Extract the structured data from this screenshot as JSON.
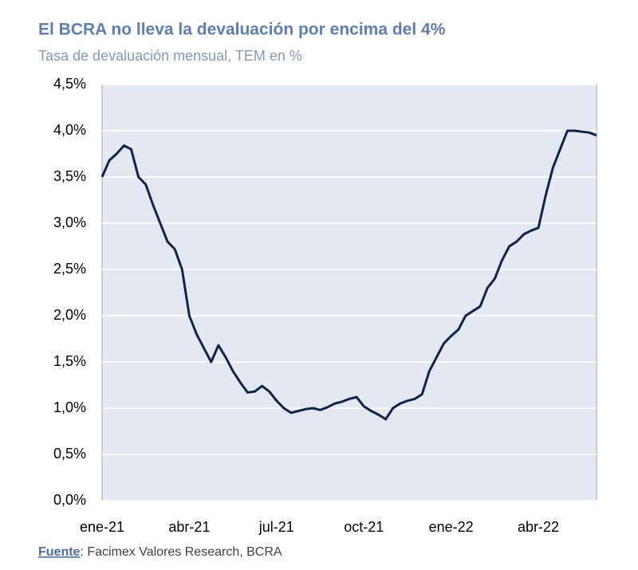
{
  "chart_data": {
    "type": "line",
    "title": "El BCRA no lleva la devaluación por encima del 4%",
    "subtitle": "Tasa de devaluación mensual, TEM en %",
    "categories": [
      "ene-21",
      null,
      null,
      null,
      null,
      null,
      null,
      null,
      null,
      null,
      null,
      null,
      "abr-21",
      null,
      null,
      null,
      null,
      null,
      null,
      null,
      null,
      null,
      null,
      null,
      "jul-21",
      null,
      null,
      null,
      null,
      null,
      null,
      null,
      null,
      null,
      null,
      null,
      "oct-21",
      null,
      null,
      null,
      null,
      null,
      null,
      null,
      null,
      null,
      null,
      null,
      "ene-22",
      null,
      null,
      null,
      null,
      null,
      null,
      null,
      null,
      null,
      null,
      null,
      "abr-22",
      null,
      null,
      null,
      null,
      null,
      null,
      null,
      null
    ],
    "values": [
      3.5,
      3.68,
      3.75,
      3.84,
      3.8,
      3.5,
      3.42,
      3.2,
      3.0,
      2.8,
      2.72,
      2.5,
      2.0,
      1.8,
      1.65,
      1.5,
      1.68,
      1.55,
      1.4,
      1.28,
      1.17,
      1.18,
      1.24,
      1.18,
      1.08,
      1.0,
      0.95,
      0.97,
      0.99,
      1.0,
      0.98,
      1.01,
      1.05,
      1.07,
      1.1,
      1.12,
      1.02,
      0.97,
      0.93,
      0.88,
      1.0,
      1.05,
      1.08,
      1.1,
      1.15,
      1.4,
      1.55,
      1.7,
      1.78,
      1.85,
      2.0,
      2.05,
      2.1,
      2.3,
      2.4,
      2.6,
      2.75,
      2.8,
      2.88,
      2.92,
      2.95,
      3.3,
      3.6,
      3.8,
      4.0,
      4.0,
      3.99,
      3.98,
      3.95
    ],
    "color": "#0d2350",
    "ylim": [
      0,
      4.5
    ],
    "yticks": [
      {
        "value": 0,
        "label": "0,0%"
      },
      {
        "value": 0.5,
        "label": "0,5%"
      },
      {
        "value": 1,
        "label": "1,0%"
      },
      {
        "value": 1.5,
        "label": "1,5%"
      },
      {
        "value": 2,
        "label": "2,0%"
      },
      {
        "value": 2.5,
        "label": "2,5%"
      },
      {
        "value": 3,
        "label": "3,0%"
      },
      {
        "value": 3.5,
        "label": "3,5%"
      },
      {
        "value": 4,
        "label": "4,0%"
      },
      {
        "value": 4.5,
        "label": "4,5%"
      }
    ],
    "grid": true,
    "source_label": "Fuente",
    "source_text": ": Facimex Valores Research, BCRA"
  }
}
